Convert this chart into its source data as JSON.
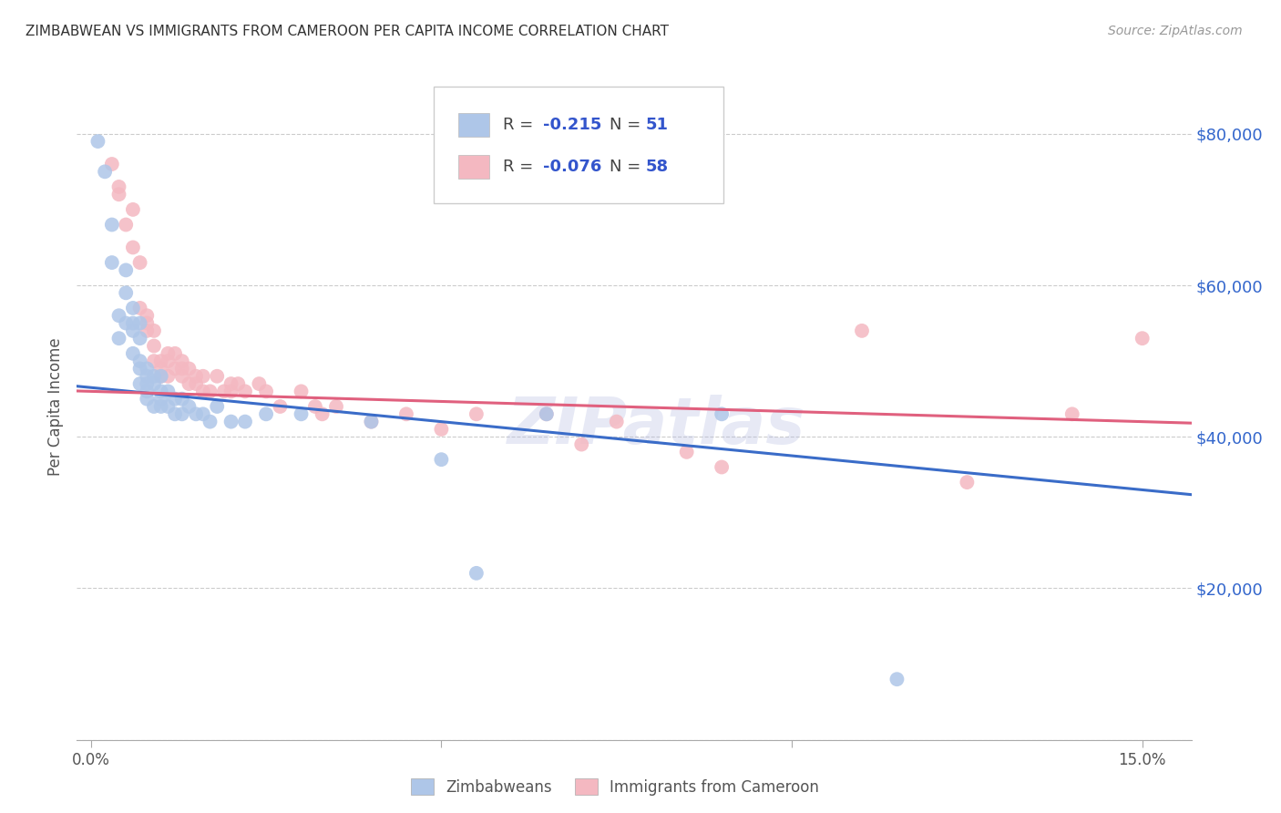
{
  "title": "ZIMBABWEAN VS IMMIGRANTS FROM CAMEROON PER CAPITA INCOME CORRELATION CHART",
  "source": "Source: ZipAtlas.com",
  "ylabel": "Per Capita Income",
  "y_ticks": [
    0,
    20000,
    40000,
    60000,
    80000
  ],
  "y_tick_labels": [
    "",
    "$20,000",
    "$40,000",
    "$60,000",
    "$80,000"
  ],
  "xlim": [
    -0.002,
    0.157
  ],
  "ylim": [
    5000,
    88000
  ],
  "legend_R1_val": "-0.215",
  "legend_N1_val": "51",
  "legend_R2_val": "-0.076",
  "legend_N2_val": "58",
  "blue_scatter_color": "#aec6e8",
  "pink_scatter_color": "#f4b8c1",
  "blue_line_color": "#3a6cc8",
  "pink_line_color": "#e0607e",
  "watermark": "ZIPatlas",
  "legend_labels": [
    "Zimbabweans",
    "Immigrants from Cameroon"
  ],
  "zim_x": [
    0.001,
    0.002,
    0.003,
    0.003,
    0.004,
    0.004,
    0.005,
    0.005,
    0.005,
    0.006,
    0.006,
    0.006,
    0.006,
    0.007,
    0.007,
    0.007,
    0.007,
    0.007,
    0.008,
    0.008,
    0.008,
    0.008,
    0.008,
    0.009,
    0.009,
    0.009,
    0.01,
    0.01,
    0.01,
    0.01,
    0.011,
    0.011,
    0.012,
    0.012,
    0.013,
    0.013,
    0.014,
    0.015,
    0.016,
    0.017,
    0.018,
    0.02,
    0.022,
    0.025,
    0.03,
    0.04,
    0.05,
    0.055,
    0.065,
    0.09,
    0.115
  ],
  "zim_y": [
    79000,
    75000,
    68000,
    63000,
    56000,
    53000,
    62000,
    59000,
    55000,
    57000,
    55000,
    54000,
    51000,
    55000,
    53000,
    50000,
    49000,
    47000,
    49000,
    48000,
    47000,
    46000,
    45000,
    48000,
    47000,
    44000,
    48000,
    46000,
    45000,
    44000,
    46000,
    44000,
    45000,
    43000,
    45000,
    43000,
    44000,
    43000,
    43000,
    42000,
    44000,
    42000,
    42000,
    43000,
    43000,
    42000,
    37000,
    22000,
    43000,
    43000,
    8000
  ],
  "cam_x": [
    0.003,
    0.004,
    0.004,
    0.005,
    0.006,
    0.006,
    0.007,
    0.007,
    0.008,
    0.008,
    0.008,
    0.009,
    0.009,
    0.009,
    0.01,
    0.01,
    0.01,
    0.011,
    0.011,
    0.011,
    0.012,
    0.012,
    0.013,
    0.013,
    0.013,
    0.014,
    0.014,
    0.015,
    0.015,
    0.016,
    0.016,
    0.017,
    0.018,
    0.019,
    0.02,
    0.02,
    0.021,
    0.022,
    0.024,
    0.025,
    0.027,
    0.03,
    0.032,
    0.033,
    0.035,
    0.04,
    0.045,
    0.05,
    0.055,
    0.065,
    0.07,
    0.075,
    0.085,
    0.09,
    0.11,
    0.125,
    0.14,
    0.15
  ],
  "cam_y": [
    76000,
    73000,
    72000,
    68000,
    70000,
    65000,
    63000,
    57000,
    56000,
    55000,
    54000,
    54000,
    52000,
    50000,
    50000,
    49000,
    48000,
    51000,
    50000,
    48000,
    51000,
    49000,
    50000,
    49000,
    48000,
    49000,
    47000,
    48000,
    47000,
    48000,
    46000,
    46000,
    48000,
    46000,
    47000,
    46000,
    47000,
    46000,
    47000,
    46000,
    44000,
    46000,
    44000,
    43000,
    44000,
    42000,
    43000,
    41000,
    43000,
    43000,
    39000,
    42000,
    38000,
    36000,
    54000,
    34000,
    43000,
    53000
  ]
}
